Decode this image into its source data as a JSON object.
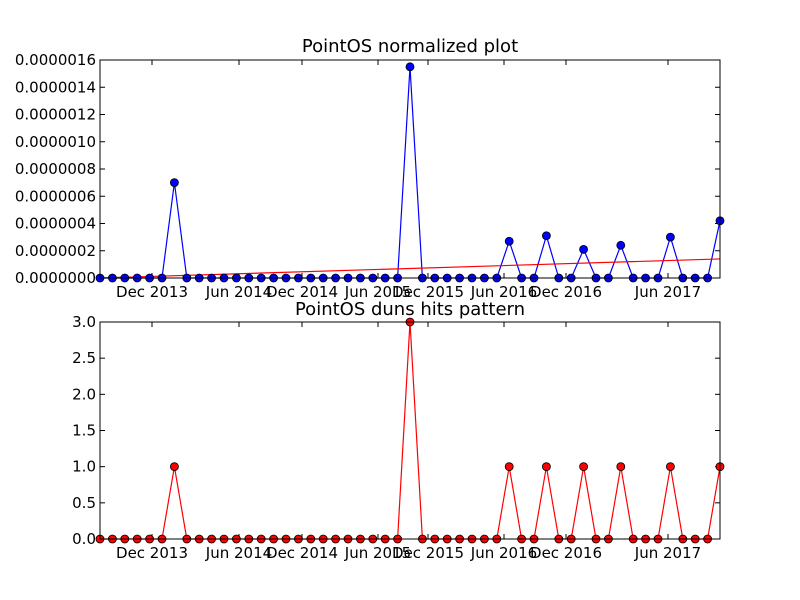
{
  "chart_data": [
    {
      "type": "line",
      "title": "PointOS normalized plot",
      "xlabel": "",
      "ylabel": "",
      "ylim": [
        0,
        1.6e-06
      ],
      "y_ticks": [
        "0.0000000",
        "0.0000002",
        "0.0000004",
        "0.0000006",
        "0.0000008",
        "0.0000010",
        "0.0000012",
        "0.0000014",
        "0.0000016"
      ],
      "x_ticks": [
        "Dec 2013",
        "Jun 2014",
        "Dec 2014",
        "Jun 2015",
        "Dec 2015",
        "Jun 2016",
        "Dec 2016",
        "Jun 2017"
      ],
      "grid": false,
      "series": [
        {
          "color": "#0000ff",
          "marker": "circle",
          "values": [
            0,
            0,
            0,
            0,
            0,
            0,
            7e-07,
            0,
            0,
            0,
            0,
            0,
            0,
            0,
            0,
            0,
            0,
            0,
            0,
            0,
            0,
            0,
            0,
            0,
            0,
            1.55e-06,
            0,
            0,
            0,
            0,
            0,
            0,
            0,
            2.7e-07,
            0,
            0,
            3.1e-07,
            0,
            0,
            2.1e-07,
            0,
            0,
            2.4e-07,
            0,
            0,
            0,
            3e-07,
            0,
            0,
            0,
            4.2e-07
          ]
        }
      ],
      "trendline": {
        "color": "#ff0000",
        "start": 0.0,
        "end": 1.4e-07
      }
    },
    {
      "type": "line",
      "title": "PointOS duns hits pattern",
      "xlabel": "",
      "ylabel": "",
      "ylim": [
        0,
        3
      ],
      "y_ticks": [
        "0.0",
        "0.5",
        "1.0",
        "1.5",
        "2.0",
        "2.5",
        "3.0"
      ],
      "x_ticks": [
        "Dec 2013",
        "Jun 2014",
        "Dec 2014",
        "Jun 2015",
        "Dec 2015",
        "Jun 2016",
        "Dec 2016",
        "Jun 2017"
      ],
      "grid": false,
      "series": [
        {
          "color": "#ff0000",
          "marker": "circle",
          "values": [
            0,
            0,
            0,
            0,
            0,
            0,
            1,
            0,
            0,
            0,
            0,
            0,
            0,
            0,
            0,
            0,
            0,
            0,
            0,
            0,
            0,
            0,
            0,
            0,
            0,
            3,
            0,
            0,
            0,
            0,
            0,
            0,
            0,
            1,
            0,
            0,
            1,
            0,
            0,
            1,
            0,
            0,
            1,
            0,
            0,
            0,
            1,
            0,
            0,
            0,
            1
          ]
        }
      ]
    }
  ]
}
